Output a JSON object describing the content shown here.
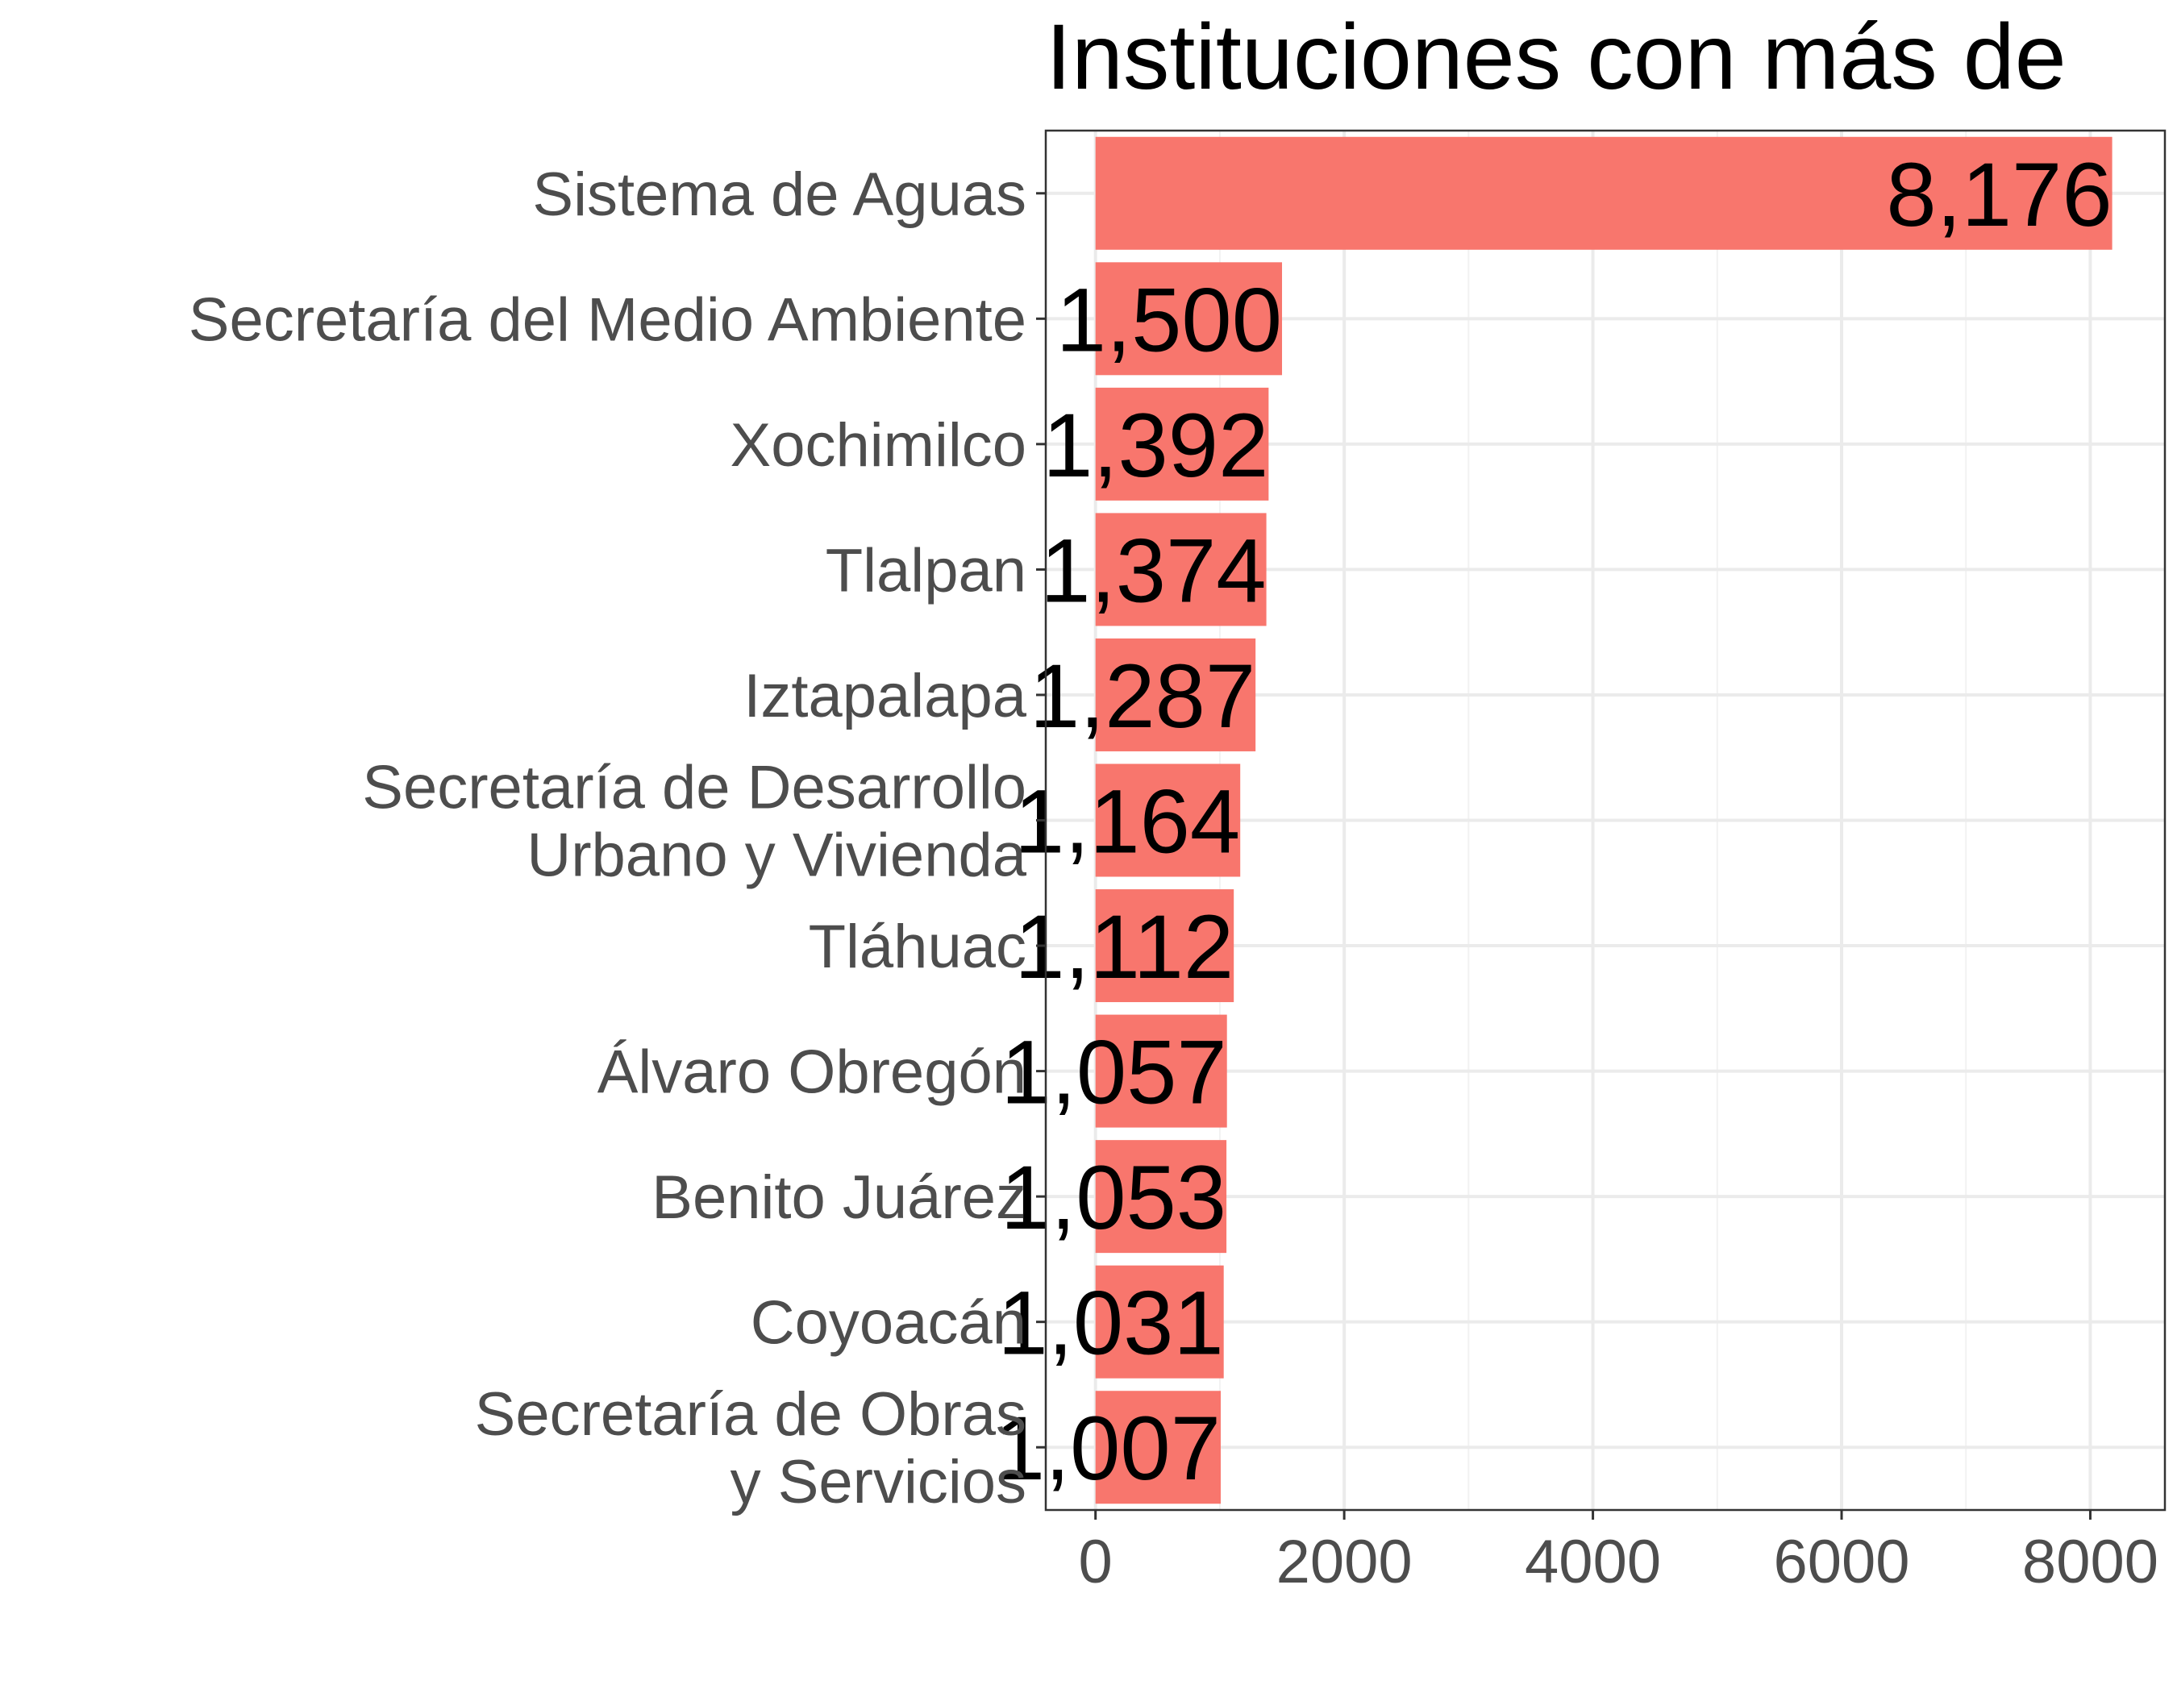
{
  "chart_data": {
    "type": "bar",
    "orientation": "horizontal",
    "title": "Instituciones con más de",
    "categories": [
      "Sistema de Aguas",
      "Secretaría del Medio Ambiente",
      "Xochimilco",
      "Tlalpan",
      "Iztapalapa",
      "Secretaría de Desarrollo\nUrbano y Vivienda",
      "Tláhuac",
      "Álvaro Obregón",
      "Benito Juárez",
      "Coyoacán",
      "Secretaría de Obras\ny Servicios"
    ],
    "values": [
      8176,
      1500,
      1392,
      1374,
      1287,
      1164,
      1112,
      1057,
      1053,
      1031,
      1007
    ],
    "value_labels": [
      "8,176",
      "1,500",
      "1,392",
      "1,374",
      "1,287",
      "1,164",
      "1,112",
      "1,057",
      "1,053",
      "1,031",
      "1,007"
    ],
    "xlim": [
      -400,
      8600
    ],
    "x_ticks": [
      0,
      2000,
      4000,
      6000,
      8000
    ],
    "x_tick_labels": [
      "0",
      "2000",
      "4000",
      "6000",
      "8000"
    ],
    "xlabel": "",
    "ylabel": "",
    "grid": true,
    "bar_color": "#f8766d"
  }
}
